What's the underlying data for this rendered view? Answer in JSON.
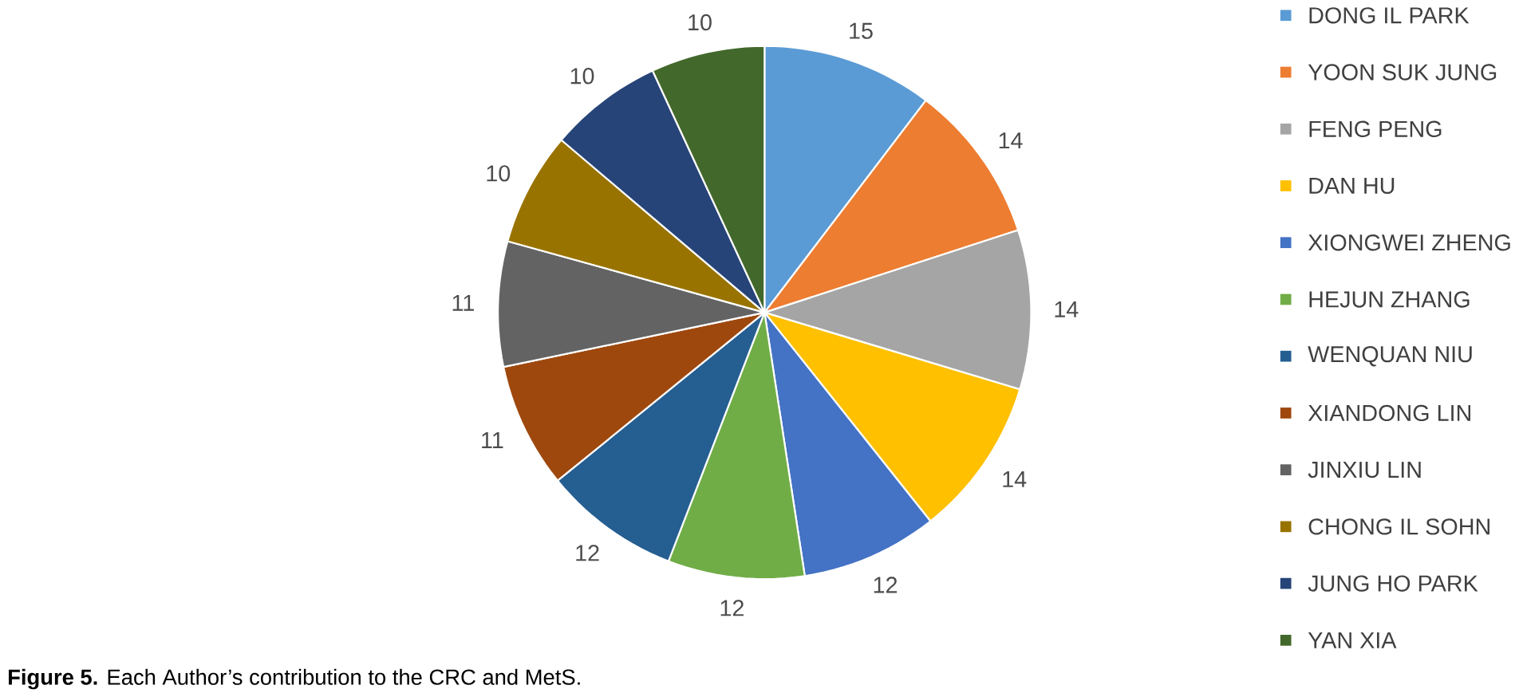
{
  "chart_data": {
    "type": "pie",
    "categories": [
      "DONG IL PARK",
      "YOON SUK JUNG",
      "FENG PENG",
      "DAN HU",
      "XIONGWEI ZHENG",
      "HEJUN ZHANG",
      "WENQUAN NIU",
      "XIANDONG LIN",
      "JINXIU LIN",
      "CHONG IL SOHN",
      "JUNG HO PARK",
      "YAN XIA"
    ],
    "values": [
      15,
      14,
      14,
      14,
      12,
      12,
      12,
      11,
      11,
      10,
      10,
      10
    ],
    "colors": [
      "#5b9bd5",
      "#ed7d31",
      "#a5a5a5",
      "#ffc000",
      "#4472c4",
      "#70ad47",
      "#255e91",
      "#9e480e",
      "#636363",
      "#997300",
      "#264478",
      "#43682b"
    ],
    "data_labels": true,
    "legend": "right",
    "annotations": [
      "**Figure 5.** Each Author’s contribution to the CRC and MetS."
    ]
  }
}
